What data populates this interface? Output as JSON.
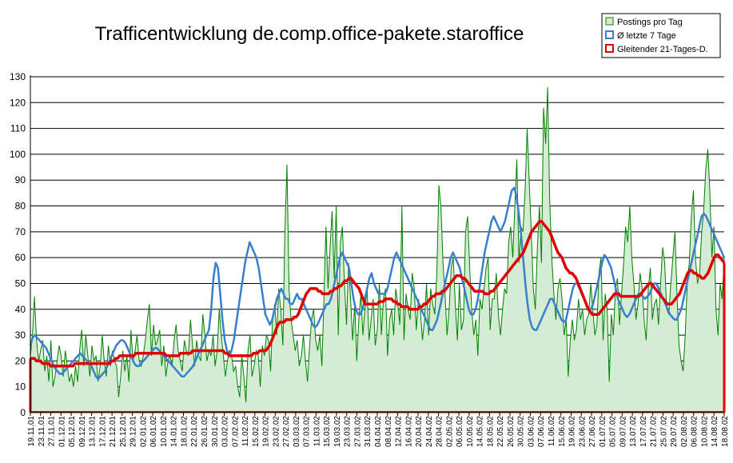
{
  "chart_data": {
    "type": "line",
    "title": "Trafficentwicklung de.comp.office-pakete.staroffice",
    "xlabel": "",
    "ylabel": "",
    "ylim": [
      0,
      130
    ],
    "y_ticks": [
      0,
      10,
      20,
      30,
      40,
      50,
      60,
      70,
      80,
      90,
      100,
      110,
      120,
      130
    ],
    "grid": true,
    "legend_position": "top-right",
    "x_tick_labels": [
      "19.11.01",
      "23.11.01",
      "27.11.01",
      "01.12.01",
      "05.12.01",
      "09.12.01",
      "13.12.01",
      "17.12.01",
      "21.12.01",
      "25.12.01",
      "29.12.01",
      "02.01.02",
      "06.01.02",
      "10.01.02",
      "14.01.02",
      "18.01.02",
      "22.01.02",
      "26.01.02",
      "30.01.02",
      "03.02.02",
      "07.02.02",
      "11.02.02",
      "15.02.02",
      "19.02.02",
      "23.02.02",
      "27.02.02",
      "03.03.02",
      "07.03.02",
      "11.03.02",
      "15.03.02",
      "19.03.02",
      "23.03.02",
      "27.03.02",
      "31.03.02",
      "04.04.02",
      "08.04.02",
      "12.04.02",
      "16.04.02",
      "20.04.02",
      "24.04.02",
      "28.04.02",
      "02.05.02",
      "06.05.02",
      "10.05.02",
      "14.05.02",
      "18.05.02",
      "22.05.02",
      "26.05.02",
      "30.05.02",
      "03.06.02",
      "07.06.02",
      "11.06.02",
      "15.06.02",
      "19.06.02",
      "23.06.02",
      "27.06.02",
      "01.07.02",
      "05.07.02",
      "09.07.02",
      "13.07.02",
      "17.07.02",
      "21.07.02",
      "25.07.02",
      "29.07.02",
      "02.08.02",
      "06.08.02",
      "10.08.02",
      "14.08.02",
      "18.08.02"
    ],
    "series": [
      {
        "name": "Postings pro Tag",
        "kind": "area",
        "values": [
          22,
          30,
          45,
          28,
          20,
          24,
          28,
          16,
          22,
          12,
          28,
          10,
          14,
          20,
          26,
          22,
          14,
          24,
          18,
          12,
          15,
          10,
          18,
          12,
          24,
          32,
          18,
          30,
          22,
          14,
          26,
          20,
          22,
          12,
          18,
          30,
          20,
          14,
          26,
          18,
          24,
          20,
          18,
          6,
          14,
          24,
          16,
          22,
          12,
          32,
          20,
          24,
          30,
          20,
          18,
          22,
          28,
          36,
          42,
          22,
          34,
          26,
          28,
          32,
          18,
          26,
          14,
          20,
          22,
          18,
          28,
          34,
          24,
          20,
          16,
          28,
          24,
          22,
          36,
          26,
          18,
          28,
          22,
          20,
          38,
          30,
          20,
          24,
          22,
          30,
          18,
          24,
          40,
          30,
          22,
          14,
          20,
          24,
          22,
          16,
          18,
          10,
          6,
          22,
          14,
          4,
          24,
          30,
          14,
          18,
          24,
          22,
          10,
          26,
          22,
          30,
          28,
          16,
          36,
          42,
          30,
          48,
          40,
          26,
          70,
          96,
          48,
          36,
          30,
          24,
          28,
          18,
          22,
          30,
          20,
          12,
          26,
          36,
          40,
          28,
          24,
          30,
          18,
          44,
          72,
          48,
          64,
          78,
          52,
          80,
          30,
          66,
          72,
          50,
          34,
          58,
          44,
          28,
          42,
          20,
          36,
          46,
          30,
          40,
          48,
          28,
          36,
          44,
          26,
          32,
          50,
          30,
          44,
          48,
          22,
          36,
          40,
          30,
          48,
          42,
          34,
          80,
          28,
          46,
          40,
          36,
          54,
          48,
          32,
          44,
          40,
          28,
          36,
          50,
          30,
          48,
          42,
          38,
          54,
          88,
          80,
          58,
          46,
          30,
          40,
          56,
          60,
          42,
          28,
          50,
          32,
          36,
          70,
          76,
          56,
          40,
          30,
          36,
          22,
          44,
          40,
          48,
          56,
          60,
          32,
          44,
          44,
          54,
          38,
          30,
          40,
          48,
          46,
          66,
          72,
          60,
          80,
          98,
          58,
          72,
          70,
          86,
          110,
          90,
          70,
          48,
          40,
          64,
          80,
          58,
          118,
          104,
          126,
          82,
          60,
          46,
          36,
          48,
          52,
          44,
          30,
          36,
          14,
          28,
          36,
          28,
          32,
          44,
          36,
          40,
          30,
          36,
          38,
          50,
          40,
          30,
          34,
          54,
          60,
          28,
          46,
          40,
          12,
          38,
          30,
          48,
          52,
          34,
          46,
          58,
          72,
          66,
          80,
          60,
          50,
          36,
          42,
          54,
          48,
          36,
          28,
          48,
          56,
          36,
          42,
          44,
          34,
          50,
          64,
          58,
          40,
          38,
          50,
          60,
          70,
          46,
          26,
          20,
          16,
          30,
          50,
          58,
          76,
          86,
          60,
          50,
          54,
          70,
          78,
          94,
          102,
          86,
          60,
          72,
          40,
          30,
          50,
          44,
          60
        ]
      },
      {
        "name": "Ø letzte 7 Tage",
        "kind": "line",
        "values": [
          26,
          29,
          30,
          29,
          28,
          27,
          26,
          25,
          23,
          21,
          19,
          17,
          16,
          15,
          15,
          16,
          17,
          18,
          19,
          20,
          21,
          22,
          23,
          22,
          21,
          20,
          19,
          18,
          16,
          14,
          13,
          14,
          15,
          16,
          18,
          20,
          22,
          24,
          26,
          27,
          28,
          28,
          27,
          25,
          23,
          21,
          19,
          18,
          18,
          19,
          20,
          21,
          22,
          23,
          24,
          25,
          25,
          24,
          23,
          22,
          21,
          20,
          19,
          18,
          17,
          16,
          15,
          14,
          14,
          15,
          16,
          17,
          18,
          20,
          22,
          24,
          26,
          28,
          30,
          32,
          40,
          52,
          58,
          56,
          46,
          36,
          28,
          24,
          22,
          24,
          28,
          34,
          40,
          46,
          52,
          58,
          62,
          66,
          64,
          62,
          60,
          56,
          50,
          44,
          38,
          36,
          34,
          36,
          40,
          44,
          46,
          48,
          46,
          44,
          44,
          42,
          42,
          44,
          46,
          44,
          44,
          42,
          40,
          38,
          36,
          34,
          33,
          34,
          36,
          38,
          40,
          42,
          42,
          44,
          48,
          52,
          56,
          60,
          62,
          60,
          58,
          56,
          50,
          44,
          40,
          38,
          38,
          40,
          44,
          48,
          52,
          54,
          50,
          48,
          46,
          46,
          46,
          46,
          48,
          52,
          56,
          60,
          62,
          60,
          58,
          56,
          54,
          52,
          50,
          48,
          46,
          44,
          42,
          40,
          38,
          36,
          34,
          32,
          32,
          34,
          36,
          40,
          44,
          48,
          52,
          56,
          60,
          62,
          60,
          58,
          56,
          52,
          48,
          44,
          40,
          38,
          38,
          40,
          44,
          50,
          56,
          62,
          66,
          70,
          74,
          76,
          74,
          72,
          70,
          72,
          74,
          78,
          82,
          86,
          87,
          84,
          78,
          70,
          60,
          50,
          42,
          36,
          33,
          32,
          32,
          34,
          36,
          38,
          40,
          42,
          44,
          44,
          42,
          40,
          38,
          36,
          35,
          36,
          40,
          44,
          48,
          50,
          50,
          48,
          46,
          44,
          42,
          40,
          40,
          42,
          46,
          50,
          54,
          58,
          61,
          60,
          58,
          56,
          52,
          48,
          44,
          42,
          40,
          38,
          37,
          38,
          40,
          42,
          44,
          46,
          46,
          45,
          44,
          45,
          46,
          48,
          50,
          50,
          48,
          46,
          44,
          42,
          40,
          38,
          37,
          36,
          36,
          38,
          40,
          44,
          48,
          52,
          56,
          60,
          64,
          68,
          72,
          76,
          77,
          76,
          74,
          72,
          70,
          68,
          66,
          64,
          62,
          60
        ]
      },
      {
        "name": "Gleitender 21-Tages-D.",
        "kind": "line",
        "values": [
          21,
          21,
          21,
          20,
          20,
          20,
          19,
          19,
          19,
          19,
          18,
          18,
          18,
          18,
          18,
          18,
          18,
          18,
          18,
          18,
          18,
          18,
          19,
          19,
          19,
          19,
          19,
          19,
          19,
          19,
          19,
          19,
          19,
          19,
          19,
          19,
          19,
          19,
          19,
          19,
          20,
          20,
          21,
          21,
          22,
          22,
          22,
          22,
          22,
          22,
          22,
          22,
          23,
          23,
          23,
          23,
          23,
          23,
          23,
          23,
          23,
          23,
          23,
          23,
          23,
          23,
          23,
          22,
          22,
          22,
          22,
          22,
          22,
          22,
          23,
          23,
          23,
          23,
          23,
          23,
          24,
          24,
          24,
          24,
          24,
          24,
          24,
          24,
          24,
          24,
          24,
          24,
          24,
          24,
          24,
          24,
          23,
          23,
          22,
          22,
          22,
          22,
          22,
          22,
          22,
          22,
          22,
          22,
          22,
          22,
          23,
          23,
          23,
          24,
          24,
          24,
          24,
          25,
          26,
          28,
          30,
          32,
          34,
          35,
          35,
          35,
          36,
          36,
          36,
          36,
          37,
          37,
          38,
          40,
          42,
          44,
          46,
          47,
          48,
          48,
          48,
          48,
          47,
          47,
          46,
          46,
          46,
          46,
          47,
          47,
          48,
          48,
          49,
          49,
          50,
          51,
          51,
          52,
          52,
          51,
          50,
          49,
          48,
          46,
          44,
          42,
          42,
          42,
          42,
          42,
          42,
          42,
          43,
          43,
          43,
          44,
          44,
          44,
          44,
          43,
          43,
          42,
          42,
          41,
          41,
          41,
          41,
          40,
          40,
          40,
          40,
          40,
          41,
          41,
          42,
          42,
          43,
          44,
          45,
          45,
          46,
          46,
          46,
          47,
          47,
          48,
          49,
          50,
          51,
          52,
          53,
          53,
          53,
          52,
          52,
          51,
          50,
          49,
          48,
          47,
          47,
          47,
          47,
          47,
          46,
          46,
          46,
          47,
          47,
          48,
          49,
          50,
          51,
          52,
          53,
          54,
          55,
          56,
          57,
          58,
          59,
          60,
          61,
          62,
          64,
          66,
          68,
          70,
          71,
          72,
          73,
          74,
          74,
          73,
          72,
          71,
          70,
          68,
          66,
          64,
          62,
          61,
          60,
          58,
          56,
          55,
          54,
          54,
          53,
          52,
          50,
          48,
          46,
          44,
          42,
          40,
          39,
          38,
          38,
          38,
          38,
          39,
          40,
          41,
          42,
          43,
          44,
          45,
          46,
          46,
          46,
          45,
          45,
          45,
          45,
          45,
          45,
          45,
          45,
          45,
          45,
          46,
          47,
          48,
          49,
          50,
          50,
          49,
          48,
          47,
          46,
          45,
          44,
          43,
          42,
          42,
          42,
          43,
          44,
          45,
          46,
          48,
          50,
          52,
          54,
          55,
          55,
          54,
          54,
          53,
          53,
          52,
          52,
          53,
          54,
          56,
          58,
          60,
          61,
          61,
          60,
          59,
          58
        ]
      }
    ]
  },
  "colors": {
    "area_fill": "#d4ebd4",
    "area_line": "#008000",
    "avg7": "#3a7fcf",
    "avg21": "#e00000",
    "grid": "#000000"
  }
}
